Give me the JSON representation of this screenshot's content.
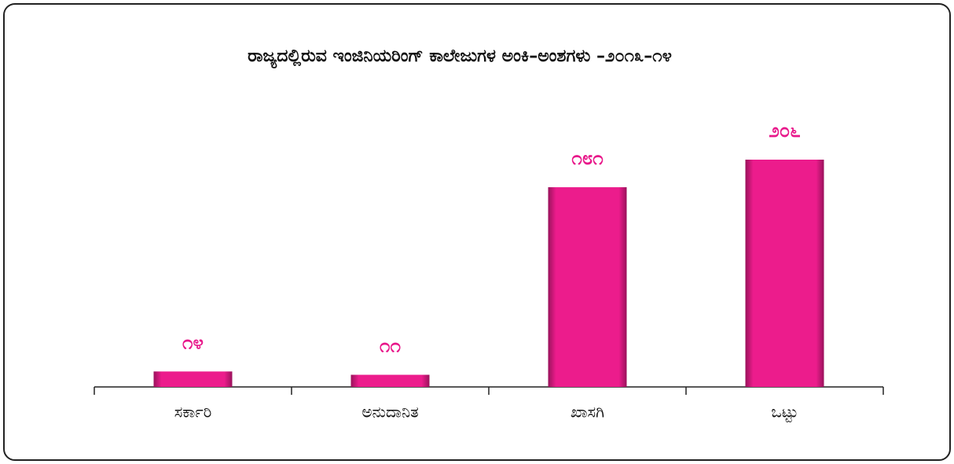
{
  "chart_data": {
    "type": "bar",
    "title": "ರಾಜ್ಯದಲ್ಲಿರುವ ಇಂಜಿನಿಯರಿಂಗ್ ಕಾಲೇಜುಗಳ ಅಂಕಿ–ಅಂಶಗಳು –೨೦೧೩–೧೪",
    "categories": [
      "ಸರ್ಕಾರಿ",
      "ಅನುದಾನಿತ",
      "ಖಾಸಗಿ",
      "ಒಟ್ಟು"
    ],
    "values": [
      14,
      11,
      181,
      206
    ],
    "value_labels": [
      "೧೪",
      "೧೧",
      "೧೮೧",
      "೨೦೬"
    ],
    "color": "#ec1c8c"
  }
}
